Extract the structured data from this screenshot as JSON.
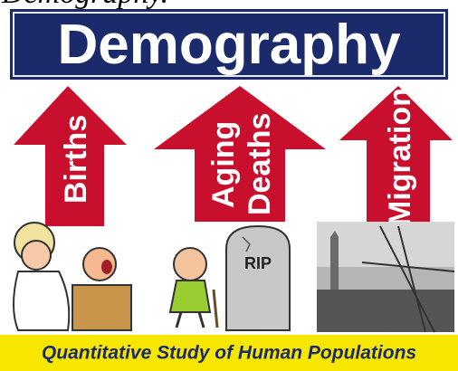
{
  "header": {
    "caption": "Demography.",
    "title": "Demography"
  },
  "arrows": [
    {
      "lines": [
        "Births"
      ]
    },
    {
      "lines": [
        "Aging",
        "Deaths"
      ]
    },
    {
      "lines": [
        "Migration"
      ]
    }
  ],
  "tombstone": "RIP",
  "footer": "Quantitative Study of Human Populations"
}
